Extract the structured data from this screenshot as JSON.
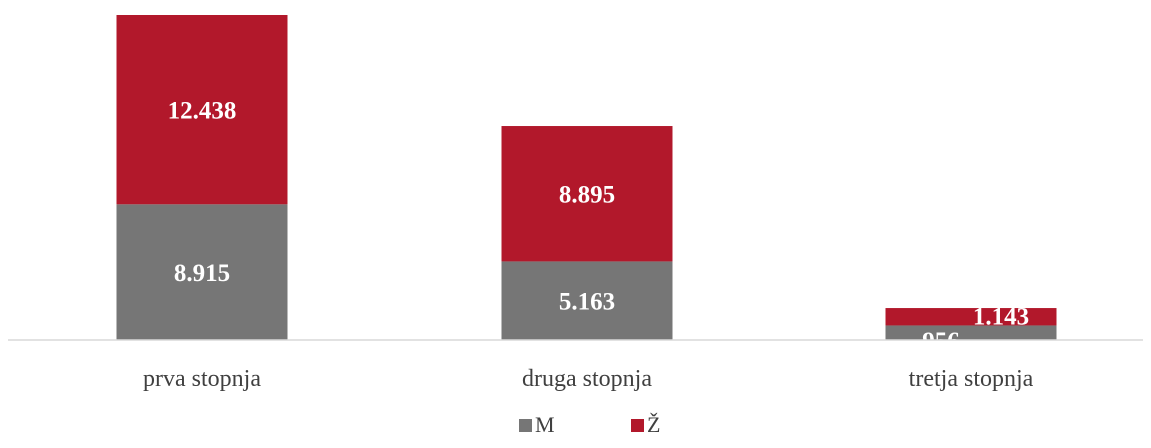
{
  "chart_data": {
    "type": "bar",
    "stacked": true,
    "categories": [
      "prva stopnja",
      "druga stopnja",
      "tretja stopnja"
    ],
    "series": [
      {
        "name": "M",
        "values": [
          8915,
          5163,
          956
        ],
        "labels": [
          "8.915",
          "5.163",
          "956"
        ],
        "color": "#767676"
      },
      {
        "name": "Ž",
        "values": [
          12438,
          8895,
          1143
        ],
        "labels": [
          "12.438",
          "8.895",
          "1.143"
        ],
        "color": "#B2182B"
      }
    ],
    "title": "",
    "xlabel": "",
    "ylabel": "",
    "ylim": [
      0,
      21353
    ],
    "grid": false,
    "legend_position": "bottom"
  }
}
